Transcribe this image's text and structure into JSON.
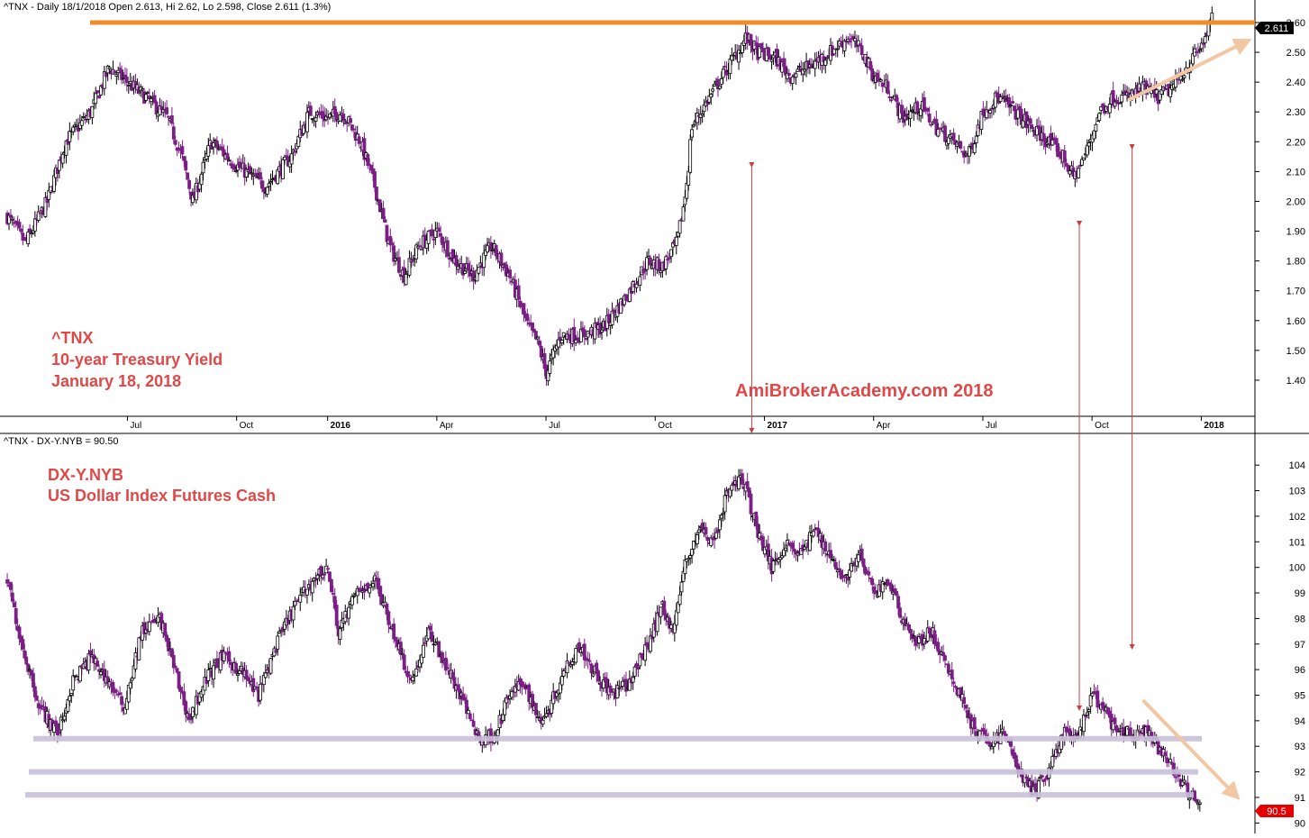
{
  "colors": {
    "up": "#000000",
    "down": "#7b1f86",
    "resistance": "#f28c28",
    "arrow": "#d23b3b",
    "annotation": "#e04848",
    "trend_arrow": "#f2c7a3",
    "support": "#c9c0d8",
    "last_price_tnx": "#000000",
    "last_price_dx": "#e60000"
  },
  "chart_data": [
    {
      "type": "candlestick",
      "header": "^TNX - Daily 18/1/2018 Open 2.613, Hi 2.62, Lo 2.598, Close 2.611 (1.3%)",
      "annotation_lines": [
        "^TNX",
        "10-year Treasury Yield",
        "January 18, 2018"
      ],
      "watermark": "AmiBrokerAcademy.com 2018",
      "ylim": [
        1.3,
        2.6
      ],
      "yticks": [
        "1.40",
        "1.50",
        "1.60",
        "1.70",
        "1.80",
        "1.90",
        "2.00",
        "2.10",
        "2.20",
        "2.30",
        "2.40",
        "2.50",
        "2.60"
      ],
      "x_tick_labels": [
        {
          "label": "Jul",
          "month": 6.5,
          "bold": false
        },
        {
          "label": "Oct",
          "month": 9.5,
          "bold": false
        },
        {
          "label": "2016",
          "month": 12.0,
          "bold": true
        },
        {
          "label": "Apr",
          "month": 15.0,
          "bold": false
        },
        {
          "label": "Jul",
          "month": 18.0,
          "bold": false
        },
        {
          "label": "Oct",
          "month": 21.0,
          "bold": false
        },
        {
          "label": "2017",
          "month": 24.0,
          "bold": true
        },
        {
          "label": "Apr",
          "month": 27.0,
          "bold": false
        },
        {
          "label": "Jul",
          "month": 30.0,
          "bold": false
        },
        {
          "label": "Oct",
          "month": 33.0,
          "bold": false
        },
        {
          "label": "2018",
          "month": 36.0,
          "bold": true
        }
      ],
      "last_price": "2.611",
      "resistance_level": 2.6,
      "approx_close_path": [
        [
          3.2,
          1.95
        ],
        [
          3.7,
          1.86
        ],
        [
          4.3,
          2.0
        ],
        [
          4.8,
          2.2
        ],
        [
          5.5,
          2.3
        ],
        [
          6.0,
          2.45
        ],
        [
          6.5,
          2.4
        ],
        [
          7.0,
          2.35
        ],
        [
          7.6,
          2.28
        ],
        [
          8.0,
          2.15
        ],
        [
          8.3,
          2.0
        ],
        [
          8.8,
          2.2
        ],
        [
          9.5,
          2.12
        ],
        [
          10.3,
          2.05
        ],
        [
          11.0,
          2.15
        ],
        [
          11.5,
          2.3
        ],
        [
          12.0,
          2.28
        ],
        [
          12.4,
          2.3
        ],
        [
          12.9,
          2.2
        ],
        [
          13.3,
          2.05
        ],
        [
          13.7,
          1.85
        ],
        [
          14.1,
          1.75
        ],
        [
          14.5,
          1.85
        ],
        [
          15.0,
          1.9
        ],
        [
          15.5,
          1.8
        ],
        [
          16.0,
          1.75
        ],
        [
          16.5,
          1.85
        ],
        [
          17.0,
          1.75
        ],
        [
          17.5,
          1.58
        ],
        [
          17.8,
          1.52
        ],
        [
          18.0,
          1.42
        ],
        [
          18.4,
          1.55
        ],
        [
          19.0,
          1.55
        ],
        [
          19.6,
          1.58
        ],
        [
          20.2,
          1.68
        ],
        [
          20.8,
          1.8
        ],
        [
          21.2,
          1.78
        ],
        [
          21.6,
          1.86
        ],
        [
          21.8,
          2.0
        ],
        [
          21.9,
          2.1
        ],
        [
          22.0,
          2.25
        ],
        [
          22.5,
          2.35
        ],
        [
          23.0,
          2.45
        ],
        [
          23.5,
          2.55
        ],
        [
          23.8,
          2.5
        ],
        [
          24.3,
          2.48
        ],
        [
          24.7,
          2.42
        ],
        [
          25.2,
          2.45
        ],
        [
          25.8,
          2.5
        ],
        [
          26.3,
          2.55
        ],
        [
          26.7,
          2.5
        ],
        [
          27.0,
          2.42
        ],
        [
          27.4,
          2.38
        ],
        [
          27.8,
          2.28
        ],
        [
          28.3,
          2.32
        ],
        [
          28.7,
          2.25
        ],
        [
          29.2,
          2.2
        ],
        [
          29.6,
          2.15
        ],
        [
          30.0,
          2.3
        ],
        [
          30.4,
          2.35
        ],
        [
          30.9,
          2.3
        ],
        [
          31.3,
          2.25
        ],
        [
          31.8,
          2.2
        ],
        [
          32.2,
          2.15
        ],
        [
          32.5,
          2.08
        ],
        [
          32.8,
          2.15
        ],
        [
          33.2,
          2.3
        ],
        [
          33.6,
          2.35
        ],
        [
          34.0,
          2.35
        ],
        [
          34.4,
          2.38
        ],
        [
          34.8,
          2.35
        ],
        [
          35.2,
          2.38
        ],
        [
          35.6,
          2.45
        ],
        [
          36.0,
          2.52
        ],
        [
          36.3,
          2.611
        ]
      ]
    },
    {
      "type": "candlestick",
      "header": "^TNX - DX-Y.NYB = 90.50",
      "annotation_lines": [
        "DX-Y.NYB",
        "US Dollar Index Futures Cash"
      ],
      "ylim": [
        89.8,
        104.5
      ],
      "yticks": [
        "90",
        "91",
        "92",
        "93",
        "94",
        "95",
        "96",
        "97",
        "98",
        "99",
        "100",
        "101",
        "102",
        "103",
        "104"
      ],
      "last_price": "90.5",
      "support_levels": [
        93.3,
        92.0,
        91.1
      ],
      "approx_close_path": [
        [
          3.2,
          99.5
        ],
        [
          3.6,
          97
        ],
        [
          4.1,
          94.5
        ],
        [
          4.6,
          93.5
        ],
        [
          5.0,
          95.5
        ],
        [
          5.5,
          96.5
        ],
        [
          6.0,
          95.5
        ],
        [
          6.4,
          94.5
        ],
        [
          6.9,
          97.5
        ],
        [
          7.4,
          98
        ],
        [
          7.8,
          96
        ],
        [
          8.2,
          94
        ],
        [
          8.6,
          95.5
        ],
        [
          9.1,
          96.5
        ],
        [
          9.6,
          96
        ],
        [
          10.1,
          95
        ],
        [
          10.6,
          97
        ],
        [
          11.1,
          98.5
        ],
        [
          11.6,
          99.5
        ],
        [
          12.0,
          100
        ],
        [
          12.3,
          97.5
        ],
        [
          12.8,
          99
        ],
        [
          13.3,
          99.5
        ],
        [
          13.8,
          97.5
        ],
        [
          14.3,
          95.5
        ],
        [
          14.8,
          97.5
        ],
        [
          15.3,
          96
        ],
        [
          15.8,
          94.5
        ],
        [
          16.2,
          93.2
        ],
        [
          16.6,
          93.5
        ],
        [
          17.0,
          95
        ],
        [
          17.4,
          95.5
        ],
        [
          17.8,
          94
        ],
        [
          18.1,
          94.5
        ],
        [
          18.5,
          96
        ],
        [
          18.9,
          97
        ],
        [
          19.3,
          96
        ],
        [
          19.8,
          95
        ],
        [
          20.3,
          95.5
        ],
        [
          20.8,
          97
        ],
        [
          21.2,
          98.5
        ],
        [
          21.5,
          97.5
        ],
        [
          21.8,
          100
        ],
        [
          22.2,
          101.5
        ],
        [
          22.6,
          101
        ],
        [
          23.0,
          103
        ],
        [
          23.4,
          103.5
        ],
        [
          23.8,
          101.5
        ],
        [
          24.2,
          100
        ],
        [
          24.6,
          101
        ],
        [
          25.0,
          100.5
        ],
        [
          25.4,
          101.5
        ],
        [
          25.8,
          100.5
        ],
        [
          26.2,
          99.5
        ],
        [
          26.6,
          100.5
        ],
        [
          27.0,
          99
        ],
        [
          27.4,
          99.5
        ],
        [
          27.8,
          98
        ],
        [
          28.2,
          97
        ],
        [
          28.6,
          97.5
        ],
        [
          29.0,
          96
        ],
        [
          29.4,
          95
        ],
        [
          29.8,
          93.5
        ],
        [
          30.2,
          93.2
        ],
        [
          30.6,
          93.5
        ],
        [
          31.0,
          92
        ],
        [
          31.4,
          91.2
        ],
        [
          31.8,
          92
        ],
        [
          32.2,
          93.5
        ],
        [
          32.6,
          93.2
        ],
        [
          33.0,
          95
        ],
        [
          33.3,
          94.5
        ],
        [
          33.7,
          93.5
        ],
        [
          34.1,
          93.5
        ],
        [
          34.5,
          93.5
        ],
        [
          34.9,
          92.8
        ],
        [
          35.3,
          92
        ],
        [
          35.7,
          91
        ],
        [
          36.0,
          90.5
        ]
      ]
    }
  ],
  "overlays": {
    "vertical_arrows": [
      {
        "month": 23.65,
        "from": "top_panel",
        "to": "bottom_axis"
      },
      {
        "month": 32.65,
        "from": "top_panel",
        "to": "bottom_panel"
      },
      {
        "month": 34.1,
        "from": "top_panel",
        "to": "bottom_panel"
      }
    ]
  }
}
